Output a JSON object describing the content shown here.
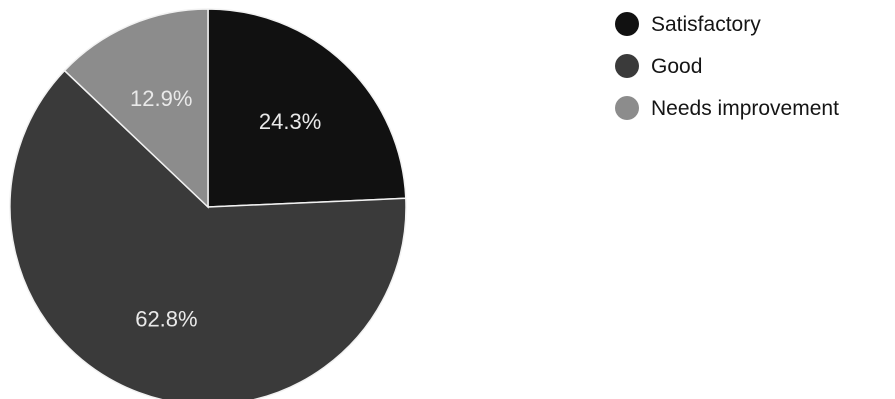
{
  "chart_data": {
    "type": "pie",
    "slices": [
      {
        "label": "Satisfactory",
        "value": 24.3,
        "value_label": "24.3%",
        "color": "#111111"
      },
      {
        "label": "Good",
        "value": 62.8,
        "value_label": "62.8%",
        "color": "#3a3a3a"
      },
      {
        "label": "Needs improvement",
        "value": 12.9,
        "value_label": "12.9%",
        "color": "#8c8c8c"
      }
    ],
    "start_angle_deg": 90,
    "direction": "clockwise",
    "legend_position": "top-right"
  }
}
